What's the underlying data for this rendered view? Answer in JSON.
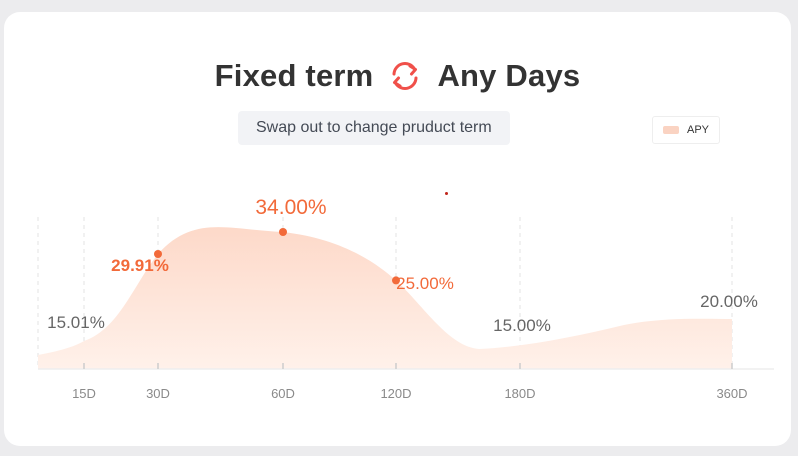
{
  "header": {
    "left_term": "Fixed term",
    "right_term": "Any Days",
    "swap_icon": "swap-rotate-icon",
    "hint": "Swap out to change pruduct term"
  },
  "legend": {
    "label": "APY",
    "color": "#fad3c2"
  },
  "colors": {
    "accent": "#f26a3a",
    "area": "#fde3d8",
    "muted_label": "#666666"
  },
  "chart_data": {
    "type": "area",
    "series": [
      {
        "name": "APY"
      }
    ],
    "points": [
      {
        "x": "15D",
        "y": 15.01,
        "label": "15.01%",
        "highlight": false
      },
      {
        "x": "30D",
        "y": 29.91,
        "label": "29.91%",
        "highlight": true
      },
      {
        "x": "60D",
        "y": 34.0,
        "label": "34.00%",
        "highlight": true
      },
      {
        "x": "120D",
        "y": 25.0,
        "label": "25.00%",
        "highlight": true
      },
      {
        "x": "180D",
        "y": 15.0,
        "label": "15.00%",
        "highlight": false
      },
      {
        "x": "360D",
        "y": 20.0,
        "label": "20.00%",
        "highlight": false
      }
    ],
    "grid": "vertical-dashed"
  }
}
